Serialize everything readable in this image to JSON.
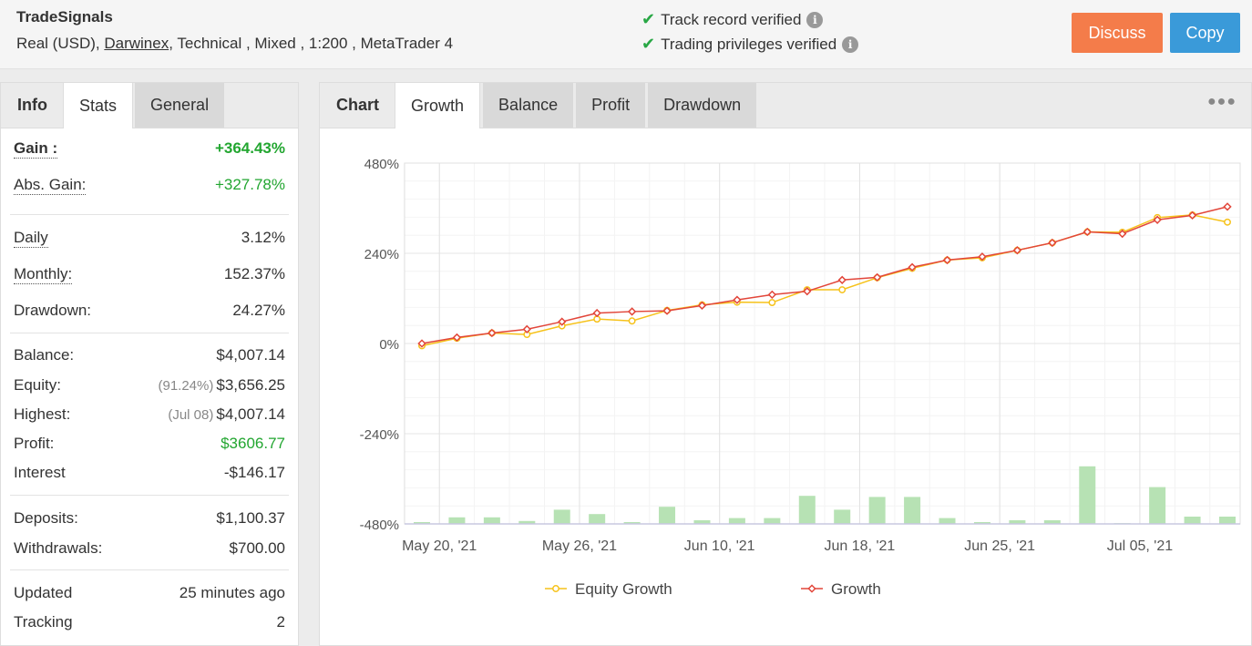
{
  "header": {
    "system_name": "TradeSignals",
    "account_type": "Real (USD),",
    "broker": "Darwinex",
    "meta_rest": ", Technical , Mixed , 1:200 , MetaTrader 4",
    "verify_1": "Track record verified",
    "verify_2": "Trading privileges verified",
    "discuss_label": "Discuss",
    "copy_label": "Copy"
  },
  "left_tabs": {
    "label": "Info",
    "stats": "Stats",
    "general": "General"
  },
  "stats": {
    "gain_k": "Gain :",
    "gain_v": "+364.43%",
    "abs_gain_k": "Abs. Gain:",
    "abs_gain_v": "+327.78%",
    "daily_k": "Daily",
    "daily_v": "3.12%",
    "monthly_k": "Monthly:",
    "monthly_v": "152.37%",
    "drawdown_k": "Drawdown:",
    "drawdown_v": "24.27%",
    "balance_k": "Balance:",
    "balance_v": "$4,007.14",
    "equity_k": "Equity:",
    "equity_sub": "(91.24%)",
    "equity_v": "$3,656.25",
    "highest_k": "Highest:",
    "highest_sub": "(Jul 08)",
    "highest_v": "$4,007.14",
    "profit_k": "Profit:",
    "profit_v": "$3606.77",
    "interest_k": "Interest",
    "interest_v": "-$146.17",
    "deposits_k": "Deposits:",
    "deposits_v": "$1,100.37",
    "withdrawals_k": "Withdrawals:",
    "withdrawals_v": "$700.00",
    "updated_k": "Updated",
    "updated_v": "25 minutes ago",
    "tracking_k": "Tracking",
    "tracking_v": "2"
  },
  "right_tabs": {
    "label": "Chart",
    "growth": "Growth",
    "balance": "Balance",
    "profit": "Profit",
    "drawdown": "Drawdown"
  },
  "colors": {
    "equity": "#f6c21a",
    "growth": "#e2463a",
    "bars": "#b7e2b4",
    "gain_green": "#22a630",
    "discuss": "#f47c4a",
    "copy": "#3a9ad9"
  },
  "chart_data": {
    "type": "line",
    "y_ticks": [
      "480%",
      "240%",
      "0%",
      "-240%",
      "-480%"
    ],
    "ylim": [
      -480,
      480
    ],
    "x_tick_labels": [
      "May 20, '21",
      "May 26, '21",
      "Jun 10, '21",
      "Jun 18, '21",
      "Jun 25, '21",
      "Jul 05, '21"
    ],
    "x_tick_index": [
      0.5,
      4.5,
      8.5,
      12.5,
      16.5,
      20.5
    ],
    "legend_position": "bottom",
    "series": [
      {
        "name": "Equity Growth",
        "color": "#f6c21a",
        "values": [
          -6,
          14,
          28,
          24,
          47,
          65,
          60,
          88,
          103,
          110,
          109,
          143,
          143,
          175,
          200,
          222,
          228,
          248,
          268,
          297,
          296,
          335,
          342,
          323
        ]
      },
      {
        "name": "Growth",
        "color": "#e2463a",
        "values": [
          0,
          16,
          28,
          38,
          58,
          81,
          85,
          87,
          101,
          116,
          130,
          139,
          169,
          176,
          203,
          222,
          231,
          248,
          268,
          297,
          292,
          329,
          341,
          364
        ]
      }
    ],
    "bars": [
      5,
      18,
      18,
      8,
      39,
      27,
      5,
      47,
      10,
      16,
      16,
      77,
      39,
      74,
      74,
      16,
      5,
      10,
      10,
      158,
      2,
      101,
      20,
      20
    ]
  }
}
